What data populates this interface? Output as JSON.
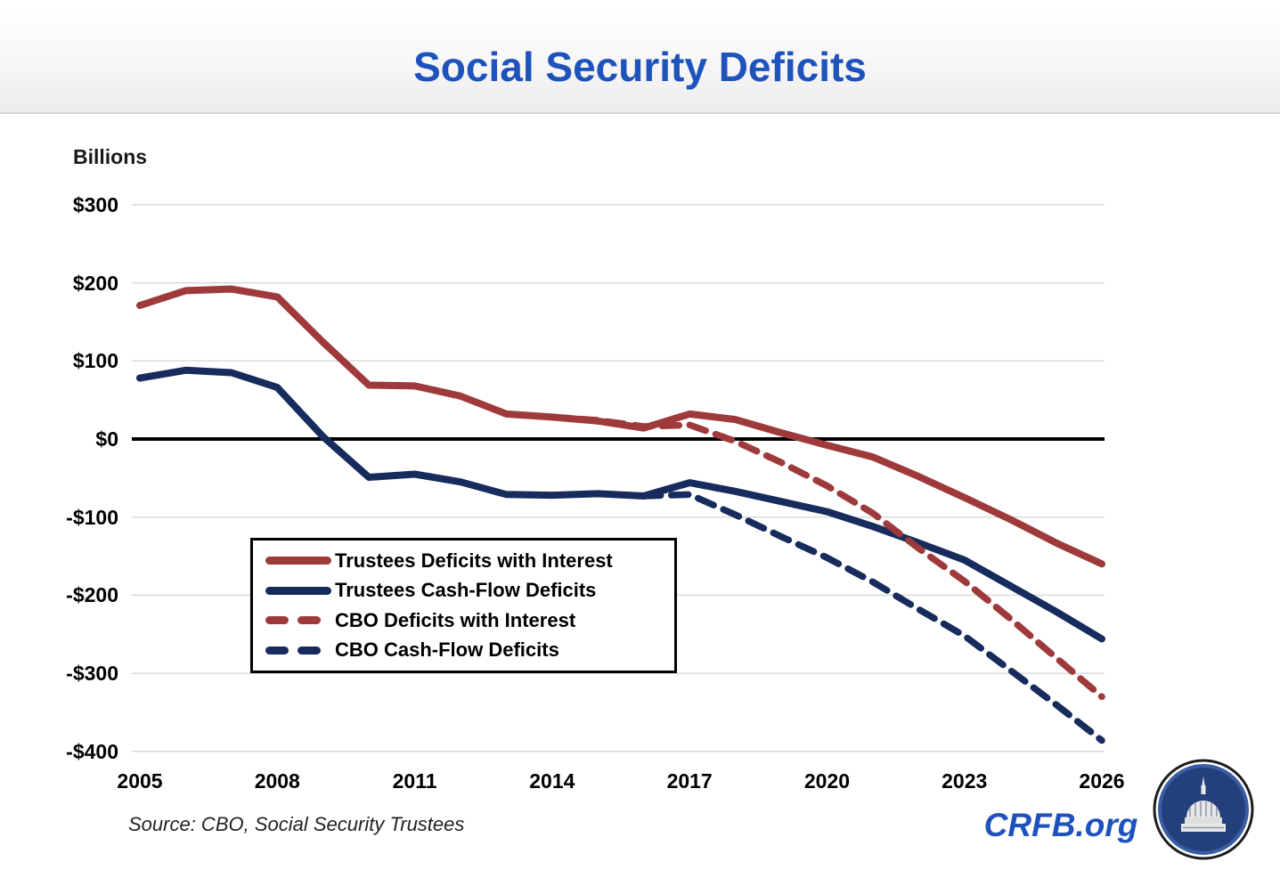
{
  "header": {
    "title": "Social Security Deficits",
    "title_color": "#1E52BC"
  },
  "chart_data": {
    "type": "line",
    "title": "Social Security Deficits",
    "ylabel": "Billions",
    "xlabel": "",
    "xlim": [
      2005,
      2026
    ],
    "ylim": [
      -400,
      345
    ],
    "grid": "horizontal",
    "grid_color": "#D9D9D9",
    "zero_line_color": "#000000",
    "legend_position": "inside-left-box",
    "y_tick_labels": [
      "$300",
      "$200",
      "$100",
      "$0",
      "-$100",
      "-$200",
      "-$300",
      "-$400"
    ],
    "y_tick_values": [
      300,
      200,
      100,
      0,
      -100,
      -200,
      -300,
      -400
    ],
    "x_ticks": [
      "2005",
      "2008",
      "2011",
      "2014",
      "2017",
      "2020",
      "2023",
      "2026"
    ],
    "series": [
      {
        "name": "Trustees Deficits with Interest",
        "color": "#9F3A3C",
        "dash": false,
        "start_year": 2005,
        "values": [
          171,
          190,
          192,
          182,
          124,
          69,
          68,
          55,
          32,
          28,
          23,
          14,
          32,
          25,
          8,
          -8,
          -23,
          -48,
          -75,
          -103,
          -133,
          -160
        ]
      },
      {
        "name": "Trustees Cash-Flow Deficits",
        "color": "#172B5C",
        "dash": false,
        "start_year": 2005,
        "values": [
          78,
          88,
          85,
          66,
          3,
          -49,
          -45,
          -55,
          -71,
          -72,
          -70,
          -73,
          -56,
          -67,
          -80,
          -93,
          -112,
          -133,
          -155,
          -188,
          -221,
          -256
        ]
      },
      {
        "name": "CBO Deficits with Interest",
        "color": "#9F3A3C",
        "dash": true,
        "start_year": 2014,
        "values": [
          28,
          24,
          16,
          18,
          -3,
          -30,
          -60,
          -95,
          -140,
          -182,
          -230,
          -280,
          -330
        ]
      },
      {
        "name": "CBO Cash-Flow Deficits",
        "color": "#172B5C",
        "dash": true,
        "start_year": 2016,
        "values": [
          -73,
          -71,
          -97,
          -125,
          -152,
          -183,
          -218,
          -252,
          -296,
          -340,
          -386
        ]
      }
    ]
  },
  "footer": {
    "source": "Source: CBO, Social Security Trustees",
    "brand": "CRFB.org",
    "brand_color": "#1E52BC",
    "logo": "capitol-dome-logo"
  }
}
